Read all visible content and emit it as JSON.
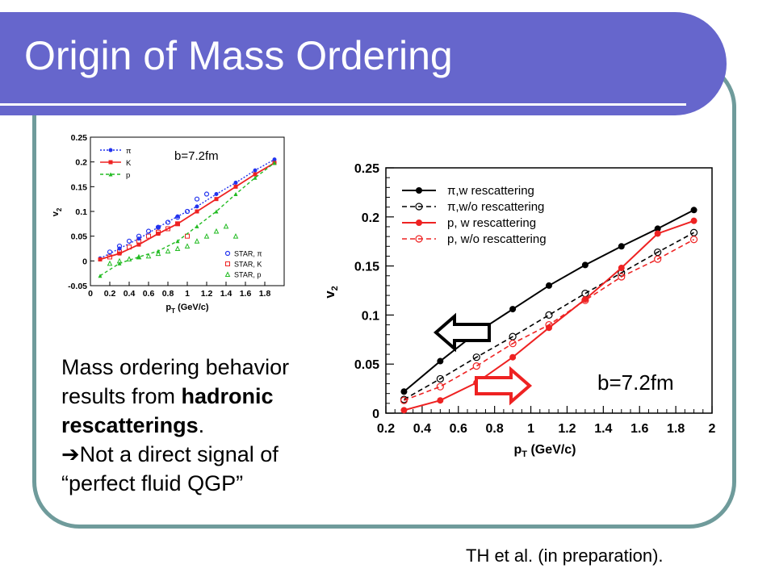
{
  "slide": {
    "title": "Origin of Mass Ordering",
    "text": {
      "line1": "Mass ordering behavior",
      "line2_pre": "results from ",
      "line2_bold": "hadronic",
      "line3_bold": "rescatterings",
      "line3_post": ".",
      "line4_arrow": "➔",
      "line4": "Not a direct signal of",
      "line5": "“perfect fluid QGP”"
    },
    "citation": "TH et al. (in preparation).",
    "colors": {
      "title_band": "#6666cc",
      "frame": "#6f9b9b",
      "arrow_left": "#000000",
      "arrow_right": "#ee2222"
    }
  },
  "chart_data": [
    {
      "type": "line",
      "annotation": "b=7.2fm",
      "xlabel_main": "p",
      "xlabel_sub": "T",
      "xlabel_rest": " (GeV/c)",
      "ylabel_main": "v",
      "ylabel_sub": "2",
      "xlim": [
        0.2,
        2.0
      ],
      "ylim": [
        0,
        0.25
      ],
      "x_ticks": [
        0.2,
        0.4,
        0.6,
        0.8,
        1.0,
        1.2,
        1.4,
        1.6,
        1.8,
        2.0
      ],
      "x_tick_labels": [
        "0.2",
        "0.4",
        "0.6",
        "0.8",
        "1",
        "1.2",
        "1.4",
        "1.6",
        "1.8",
        "2"
      ],
      "y_ticks": [
        0,
        0.05,
        0.1,
        0.15,
        0.2,
        0.25
      ],
      "y_tick_labels": [
        "0",
        "0.05",
        "0.1",
        "0.15",
        "0.2",
        "0.25"
      ],
      "legend_position": "top-left",
      "series": [
        {
          "name": "π,w rescattering",
          "color": "#000000",
          "dashed": false,
          "marker": "filled",
          "x": [
            0.3,
            0.5,
            0.7,
            0.9,
            1.1,
            1.3,
            1.5,
            1.7,
            1.9
          ],
          "y": [
            0.022,
            0.053,
            0.082,
            0.106,
            0.13,
            0.151,
            0.17,
            0.188,
            0.207
          ]
        },
        {
          "name": "π,w/o rescattering",
          "color": "#000000",
          "dashed": true,
          "marker": "open",
          "x": [
            0.3,
            0.5,
            0.7,
            0.9,
            1.1,
            1.3,
            1.5,
            1.7,
            1.9
          ],
          "y": [
            0.014,
            0.035,
            0.057,
            0.078,
            0.1,
            0.122,
            0.143,
            0.164,
            0.184
          ]
        },
        {
          "name": "p, w rescattering",
          "color": "#ee2222",
          "dashed": false,
          "marker": "filled",
          "x": [
            0.3,
            0.5,
            0.7,
            0.9,
            1.1,
            1.3,
            1.5,
            1.7,
            1.9
          ],
          "y": [
            0.003,
            0.013,
            0.031,
            0.057,
            0.087,
            0.116,
            0.148,
            0.183,
            0.196
          ]
        },
        {
          "name": "p, w/o rescattering",
          "color": "#ee2222",
          "dashed": true,
          "marker": "open",
          "x": [
            0.3,
            0.5,
            0.7,
            0.9,
            1.1,
            1.3,
            1.5,
            1.7,
            1.9
          ],
          "y": [
            0.013,
            0.027,
            0.048,
            0.071,
            0.09,
            0.115,
            0.139,
            0.157,
            0.177
          ]
        }
      ]
    },
    {
      "type": "line",
      "annotation": "b=7.2fm",
      "xlabel_main": "p",
      "xlabel_sub": "T",
      "xlabel_rest": " (GeV/c)",
      "ylabel_main": "v",
      "ylabel_sub": "2",
      "xlim": [
        0,
        2.0
      ],
      "ylim": [
        -0.05,
        0.25
      ],
      "x_ticks": [
        0,
        0.2,
        0.4,
        0.6,
        0.8,
        1.0,
        1.2,
        1.4,
        1.6,
        1.8
      ],
      "x_tick_labels": [
        "0",
        "0.2",
        "0.4",
        "0.6",
        "0.8",
        "1",
        "1.2",
        "1.4",
        "1.6",
        "1.8"
      ],
      "y_ticks": [
        -0.05,
        0,
        0.05,
        0.1,
        0.15,
        0.2,
        0.25
      ],
      "y_tick_labels": [
        "-0.05",
        "0",
        "0.05",
        "0.1",
        "0.15",
        "0.2",
        "0.25"
      ],
      "legend_position": "top-left",
      "series": [
        {
          "name": "π",
          "color": "#2233ee",
          "dashed": "dotted",
          "marker": "filled",
          "x": [
            0.1,
            0.3,
            0.5,
            0.7,
            0.9,
            1.1,
            1.3,
            1.5,
            1.7,
            1.9
          ],
          "y": [
            0.005,
            0.025,
            0.045,
            0.068,
            0.09,
            0.11,
            0.135,
            0.158,
            0.183,
            0.205
          ]
        },
        {
          "name": "K",
          "color": "#ee2222",
          "dashed": false,
          "marker": "square",
          "x": [
            0.1,
            0.3,
            0.5,
            0.7,
            0.9,
            1.1,
            1.3,
            1.5,
            1.7,
            1.9
          ],
          "y": [
            0.003,
            0.015,
            0.033,
            0.055,
            0.075,
            0.1,
            0.125,
            0.15,
            0.175,
            0.198
          ]
        },
        {
          "name": "p",
          "color": "#22bb22",
          "dashed": true,
          "marker": "triangle",
          "x": [
            0.1,
            0.3,
            0.5,
            0.7,
            0.9,
            1.1,
            1.3,
            1.5,
            1.7,
            1.9
          ],
          "y": [
            -0.03,
            -0.005,
            0.008,
            0.02,
            0.04,
            0.07,
            0.1,
            0.135,
            0.168,
            0.198
          ]
        }
      ],
      "star_data": [
        {
          "name": "STAR, π",
          "color": "#2233ee",
          "marker": "open-circle",
          "x": [
            0.2,
            0.3,
            0.4,
            0.5,
            0.6,
            0.7,
            0.8,
            0.9,
            1.0,
            1.1,
            1.2
          ],
          "y": [
            0.018,
            0.03,
            0.04,
            0.05,
            0.06,
            0.068,
            0.078,
            0.088,
            0.1,
            0.125,
            0.135
          ]
        },
        {
          "name": "STAR, K",
          "color": "#ee2222",
          "marker": "open-square",
          "x": [
            0.2,
            0.3,
            0.4,
            0.5,
            0.6,
            0.7,
            0.8,
            0.9,
            1.0
          ],
          "y": [
            0.008,
            0.018,
            0.028,
            0.04,
            0.05,
            0.058,
            0.065,
            0.075,
            0.05
          ]
        },
        {
          "name": "STAR, p",
          "color": "#22bb22",
          "marker": "open-triangle",
          "x": [
            0.2,
            0.3,
            0.4,
            0.5,
            0.6,
            0.7,
            0.8,
            0.9,
            1.0,
            1.1,
            1.2,
            1.3,
            1.4,
            1.5
          ],
          "y": [
            -0.005,
            0.0,
            0.004,
            0.008,
            0.01,
            0.015,
            0.02,
            0.025,
            0.03,
            0.04,
            0.05,
            0.06,
            0.07,
            0.05
          ]
        }
      ]
    }
  ]
}
